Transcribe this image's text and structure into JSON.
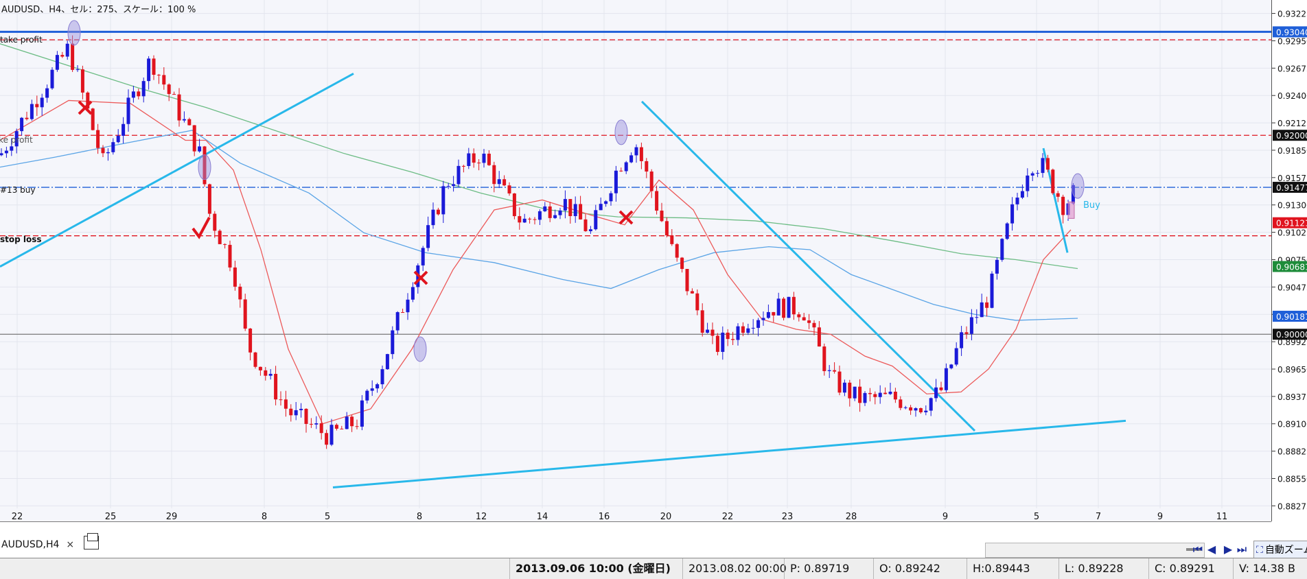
{
  "chart_header": "AUDUSD、H4、セル：275、スケール：100 %",
  "price_labels": [
    "0.93225",
    "0.92950",
    "0.92675",
    "0.92400",
    "0.92125",
    "0.91850",
    "0.91575",
    "0.91300",
    "0.91025",
    "0.90750",
    "0.90475",
    "0.90200",
    "0.89925",
    "0.89650",
    "0.89375",
    "0.89100",
    "0.88825",
    "0.88550",
    "0.88275"
  ],
  "highlighted_prices": [
    {
      "value": "0.93040",
      "color": "#1f5fd8",
      "price": 0.9304
    },
    {
      "value": "0.92000",
      "color": "#111111",
      "price": 0.92
    },
    {
      "value": "0.91477",
      "color": "#111111",
      "price": 0.91477
    },
    {
      "value": "0.91121",
      "color": "#e0141e",
      "price": 0.91121
    },
    {
      "value": "0.90681",
      "color": "#1e8c3a",
      "price": 0.90681
    },
    {
      "value": "0.90181",
      "color": "#1f5fd8",
      "price": 0.90181
    },
    {
      "value": "0.90000",
      "color": "#111111",
      "price": 0.9
    }
  ],
  "date_labels": [
    "22",
    "25",
    "29",
    "8",
    "5",
    "8",
    "12",
    "14",
    "16",
    "20",
    "22",
    "23",
    "28",
    "9",
    "5",
    "7",
    "9",
    "11"
  ],
  "line_labels": {
    "take_profit": "take profit",
    "take_profit_2": "take profit",
    "buy_order": "#13 buy",
    "stop_loss": "stop loss",
    "buy_marker": "Buy"
  },
  "tab": {
    "symbol": "AUDUSD,H4",
    "close": "×"
  },
  "toolbar": {
    "zoom_label": "自動ズーム"
  },
  "status": {
    "datetime": "2013.09.06 10:00 (金曜日)",
    "bar_time": "2013.08.02 00:00",
    "p": "P: 0.89719",
    "o": "O: 0.89242",
    "h": "H:0.89443",
    "l": "L: 0.89228",
    "c": "C: 0.89291",
    "v": "V: 14.38 B"
  },
  "colors": {
    "bull": "#1a1ad8",
    "bear": "#e0141e",
    "trendline": "#28b8ea",
    "ma_fast": "#ec5a5a",
    "ma_mid": "#5aa4e6",
    "ma_slow": "#6cbc84",
    "tp_line": "#1f5fd8",
    "sl_line": "#e0141e"
  },
  "chart_data": {
    "type": "candlestick",
    "symbol": "AUDUSD",
    "timeframe": "H4",
    "ylim": [
      0.8825,
      0.9336
    ],
    "y_ticks": [
      0.93225,
      0.9295,
      0.92675,
      0.924,
      0.92125,
      0.9185,
      0.91575,
      0.913,
      0.91025,
      0.9075,
      0.90475,
      0.902,
      0.89925,
      0.8965,
      0.89375,
      0.891,
      0.88825,
      0.8855,
      0.88275
    ],
    "horizontal_lines": [
      {
        "name": "take profit",
        "price": 0.9304,
        "style": "solid",
        "color": "#1f5fd8"
      },
      {
        "name": "take profit",
        "price": 0.9296,
        "style": "dashed",
        "color": "#e0141e"
      },
      {
        "name": "take profit",
        "price": 0.92,
        "style": "dashed",
        "color": "#e0141e"
      },
      {
        "name": "#13 buy",
        "price": 0.91477,
        "style": "dashdot",
        "color": "#1f5fd8"
      },
      {
        "name": "stop loss",
        "price": 0.9099,
        "style": "dashed",
        "color": "#e0141e"
      },
      {
        "name": "0.90000",
        "price": 0.9,
        "style": "solid",
        "color": "#777777"
      }
    ],
    "anchors": [
      [
        0,
        0.918
      ],
      [
        100,
        0.9288
      ],
      [
        150,
        0.9172
      ],
      [
        220,
        0.9277
      ],
      [
        290,
        0.9184
      ],
      [
        305,
        0.9122
      ],
      [
        340,
        0.9068
      ],
      [
        360,
        0.899
      ],
      [
        420,
        0.8922
      ],
      [
        480,
        0.8897
      ],
      [
        520,
        0.8913
      ],
      [
        560,
        0.8975
      ],
      [
        610,
        0.9075
      ],
      [
        650,
        0.9152
      ],
      [
        700,
        0.9182
      ],
      [
        760,
        0.9112
      ],
      [
        820,
        0.9135
      ],
      [
        860,
        0.9102
      ],
      [
        900,
        0.9168
      ],
      [
        925,
        0.9194
      ],
      [
        980,
        0.9082
      ],
      [
        1040,
        0.8985
      ],
      [
        1090,
        0.9015
      ],
      [
        1130,
        0.9028
      ],
      [
        1170,
        0.9025
      ],
      [
        1210,
        0.8955
      ],
      [
        1250,
        0.8935
      ],
      [
        1300,
        0.8936
      ],
      [
        1340,
        0.8928
      ],
      [
        1370,
        0.8942
      ],
      [
        1400,
        0.8995
      ],
      [
        1440,
        0.9038
      ],
      [
        1475,
        0.9124
      ],
      [
        1500,
        0.9174
      ],
      [
        1520,
        0.9168
      ],
      [
        1550,
        0.9129
      ],
      [
        1570,
        0.9148
      ]
    ],
    "ma_fast": [
      [
        0,
        0.9195
      ],
      [
        100,
        0.9235
      ],
      [
        190,
        0.9232
      ],
      [
        270,
        0.9195
      ],
      [
        300,
        0.9195
      ],
      [
        340,
        0.9165
      ],
      [
        380,
        0.9085
      ],
      [
        420,
        0.8985
      ],
      [
        470,
        0.891
      ],
      [
        540,
        0.8925
      ],
      [
        600,
        0.8985
      ],
      [
        660,
        0.9065
      ],
      [
        720,
        0.9125
      ],
      [
        790,
        0.9135
      ],
      [
        860,
        0.912
      ],
      [
        910,
        0.911
      ],
      [
        960,
        0.9155
      ],
      [
        1010,
        0.9125
      ],
      [
        1060,
        0.906
      ],
      [
        1110,
        0.9015
      ],
      [
        1160,
        0.9005
      ],
      [
        1210,
        0.9
      ],
      [
        1260,
        0.8978
      ],
      [
        1300,
        0.8968
      ],
      [
        1350,
        0.894
      ],
      [
        1400,
        0.8942
      ],
      [
        1440,
        0.8965
      ],
      [
        1480,
        0.9005
      ],
      [
        1520,
        0.9075
      ],
      [
        1560,
        0.9105
      ]
    ],
    "ma_mid": [
      [
        0,
        0.9168
      ],
      [
        80,
        0.9178
      ],
      [
        160,
        0.9189
      ],
      [
        280,
        0.9205
      ],
      [
        350,
        0.9172
      ],
      [
        450,
        0.9142
      ],
      [
        530,
        0.9102
      ],
      [
        620,
        0.9082
      ],
      [
        720,
        0.9072
      ],
      [
        820,
        0.9055
      ],
      [
        890,
        0.9046
      ],
      [
        960,
        0.9065
      ],
      [
        1040,
        0.9082
      ],
      [
        1120,
        0.9088
      ],
      [
        1180,
        0.9085
      ],
      [
        1240,
        0.906
      ],
      [
        1300,
        0.9045
      ],
      [
        1360,
        0.903
      ],
      [
        1420,
        0.902
      ],
      [
        1480,
        0.9014
      ],
      [
        1570,
        0.9016
      ]
    ],
    "ma_slow": [
      [
        0,
        0.9292
      ],
      [
        100,
        0.927
      ],
      [
        200,
        0.9248
      ],
      [
        300,
        0.9228
      ],
      [
        400,
        0.9205
      ],
      [
        500,
        0.9182
      ],
      [
        600,
        0.9163
      ],
      [
        700,
        0.9142
      ],
      [
        800,
        0.9125
      ],
      [
        900,
        0.9118
      ],
      [
        1000,
        0.9117
      ],
      [
        1100,
        0.9114
      ],
      [
        1200,
        0.9106
      ],
      [
        1300,
        0.9094
      ],
      [
        1400,
        0.9081
      ],
      [
        1480,
        0.9075
      ],
      [
        1570,
        0.9066
      ]
    ],
    "trendlines": [
      [
        [
          0,
          0.9068
        ],
        [
          515,
          0.9262
        ]
      ],
      [
        [
          935,
          0.9234
        ],
        [
          1420,
          0.8903
        ]
      ],
      [
        [
          485,
          0.8846
        ],
        [
          1640,
          0.8913
        ]
      ],
      [
        [
          1520,
          0.9187
        ],
        [
          1555,
          0.9082
        ]
      ]
    ]
  }
}
